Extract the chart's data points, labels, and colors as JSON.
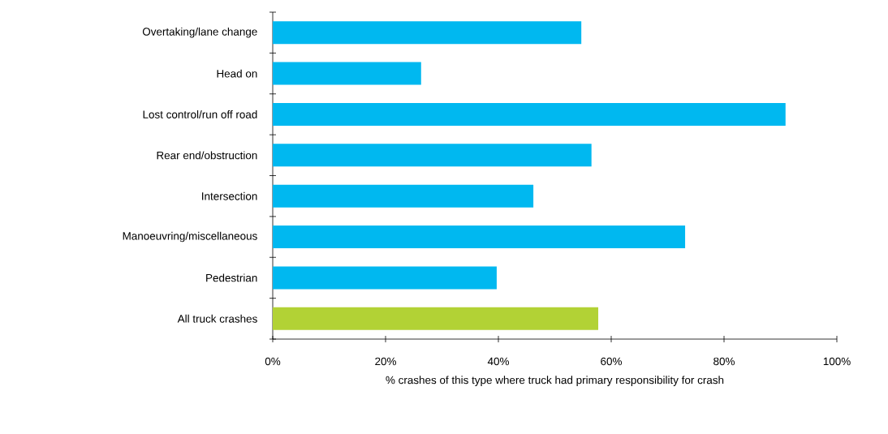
{
  "chart_data": {
    "type": "bar",
    "orientation": "horizontal",
    "xlabel": "% crashes of this type  where truck had primary responsibility for crash",
    "categories": [
      "Overtaking/lane change",
      "Head on",
      "Lost control/run off road",
      "Rear end/obstruction",
      "Intersection",
      "Manoeuvring/miscellaneous",
      "Pedestrian",
      "All truck crashes"
    ],
    "values": [
      54.7,
      26.3,
      90.9,
      56.5,
      46.2,
      73.1,
      39.7,
      57.7
    ],
    "colors": [
      "#00b8f0",
      "#00b8f0",
      "#00b8f0",
      "#00b8f0",
      "#00b8f0",
      "#00b8f0",
      "#00b8f0",
      "#b2d235"
    ],
    "xlim": [
      0,
      100
    ],
    "xticks": [
      {
        "value": 0,
        "label": "0%"
      },
      {
        "value": 20,
        "label": "20%"
      },
      {
        "value": 40,
        "label": "40%"
      },
      {
        "value": 60,
        "label": "60%"
      },
      {
        "value": 80,
        "label": "80%"
      },
      {
        "value": 100,
        "label": "100%"
      }
    ],
    "grid": false
  }
}
